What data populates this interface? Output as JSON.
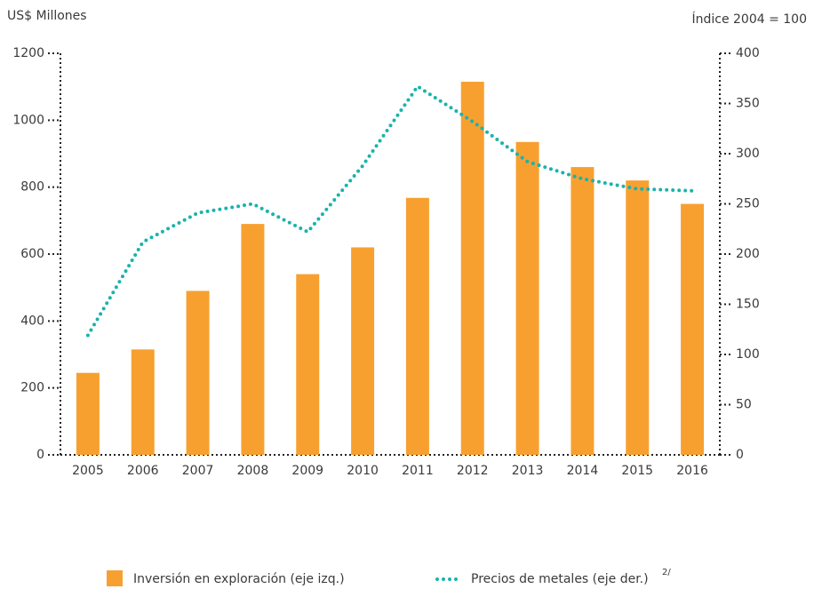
{
  "chart_data": {
    "type": "bar_line",
    "y_label": "US$ Millones",
    "y2_label": "Índice 2004 = 100",
    "categories": [
      "2005",
      "2006",
      "2007",
      "2008",
      "2009",
      "2010",
      "2011",
      "2012",
      "2013",
      "2014",
      "2015",
      "2016"
    ],
    "series": [
      {
        "name": "Inversión en exploración (eje izq.)",
        "type": "bar",
        "color": "#f7a030",
        "axis": "y",
        "values": [
          245,
          315,
          490,
          690,
          540,
          620,
          768,
          1115,
          935,
          860,
          820,
          750
        ]
      },
      {
        "name": "Precios de metales (eje der.)",
        "note": "2/",
        "type": "line",
        "color": "#1ab3ad",
        "axis": "y2",
        "values": [
          119,
          212,
          241,
          250,
          222,
          288,
          367,
          332,
          292,
          275,
          265,
          263
        ]
      }
    ],
    "ylim": [
      0,
      1200
    ],
    "yticks": [
      0,
      200,
      400,
      600,
      800,
      1000,
      1200
    ],
    "y2lim": [
      0,
      400
    ],
    "y2ticks": [
      0,
      50,
      100,
      150,
      200,
      250,
      300,
      350,
      400
    ]
  }
}
